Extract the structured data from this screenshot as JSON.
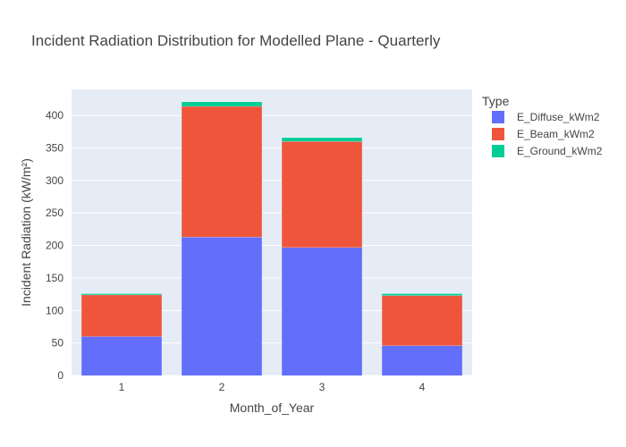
{
  "chart_data": {
    "type": "bar",
    "title": "Incident Radiation Distribution for Modelled Plane - Quarterly",
    "xlabel": "Month_of_Year",
    "ylabel": "Incident Radiation (kW/m²)",
    "categories": [
      "1",
      "2",
      "3",
      "4"
    ],
    "series": [
      {
        "name": "E_Diffuse_kWm2",
        "values": [
          60,
          213,
          197,
          46
        ],
        "color": "#636efa"
      },
      {
        "name": "E_Beam_kWm2",
        "values": [
          64,
          201,
          163,
          77
        ],
        "color": "#ef553b"
      },
      {
        "name": "E_Ground_kWm2",
        "values": [
          2,
          7,
          6,
          3
        ],
        "color": "#00cc96"
      }
    ],
    "ylim": [
      0,
      440
    ],
    "yticks": [
      0,
      50,
      100,
      150,
      200,
      250,
      300,
      350,
      400
    ],
    "stacked": true,
    "grid": true,
    "legend": {
      "title": "Type",
      "position": "right"
    },
    "plot_background": "#e5ecf6"
  }
}
